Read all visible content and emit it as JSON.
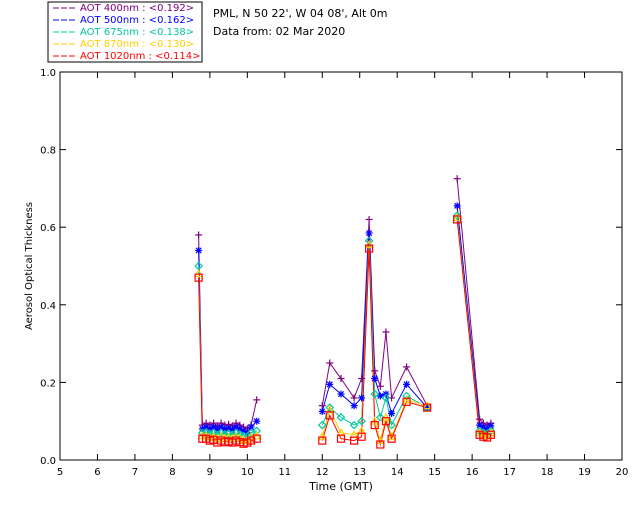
{
  "legend": {
    "entries": [
      {
        "label": "AOT  400nm : <0.192>",
        "color": "#800080"
      },
      {
        "label": "AOT  500nm : <0.162>",
        "color": "#0000ff"
      },
      {
        "label": "AOT  675nm : <0.138>",
        "color": "#00c8a0"
      },
      {
        "label": "AOT  870nm : <0.130>",
        "color": "#ffcc00"
      },
      {
        "label": "AOT 1020nm : <0.114>",
        "color": "#ff0000"
      }
    ]
  },
  "info": {
    "site": "PML, N 50 22', W 04 08', Alt 0m",
    "date": "Data from: 02 Mar 2020"
  },
  "chart_data": {
    "type": "scatter",
    "xlabel": "Time (GMT)",
    "ylabel": "Aerosol Optical Thickness",
    "xlim": [
      5,
      20
    ],
    "ylim": [
      0,
      1.0
    ],
    "xticks": [
      "5",
      "6",
      "7",
      "8",
      "9",
      "10",
      "11",
      "12",
      "13",
      "14",
      "15",
      "16",
      "17",
      "18",
      "19",
      "20"
    ],
    "yticks": [
      "0.0",
      "0.2",
      "0.4",
      "0.6",
      "0.8",
      "1.0"
    ],
    "grid": false,
    "legend_position": "top-left, above plot",
    "series": [
      {
        "name": "AOT  400nm : <0.192>",
        "marker": "plus",
        "color": "#800080",
        "points": [
          [
            8.7,
            0.58
          ],
          [
            8.8,
            0.09
          ],
          [
            8.9,
            0.095
          ],
          [
            9.0,
            0.09
          ],
          [
            9.1,
            0.095
          ],
          [
            9.2,
            0.088
          ],
          [
            9.3,
            0.095
          ],
          [
            9.4,
            0.09
          ],
          [
            9.5,
            0.092
          ],
          [
            9.6,
            0.088
          ],
          [
            9.7,
            0.095
          ],
          [
            9.8,
            0.09
          ],
          [
            9.9,
            0.085
          ],
          [
            10.0,
            0.08
          ],
          [
            10.1,
            0.09
          ],
          [
            10.25,
            0.155
          ],
          [
            12.0,
            0.14
          ],
          [
            12.2,
            0.25
          ],
          [
            12.5,
            0.21
          ],
          [
            12.85,
            0.16
          ],
          [
            13.05,
            0.21
          ],
          [
            13.25,
            0.62
          ],
          [
            13.4,
            0.23
          ],
          [
            13.55,
            0.19
          ],
          [
            13.7,
            0.33
          ],
          [
            13.85,
            0.16
          ],
          [
            14.25,
            0.24
          ],
          [
            14.8,
            0.14
          ],
          [
            15.6,
            0.725
          ],
          [
            16.2,
            0.105
          ],
          [
            16.3,
            0.095
          ],
          [
            16.4,
            0.09
          ],
          [
            16.5,
            0.095
          ]
        ]
      },
      {
        "name": "AOT  500nm : <0.162>",
        "marker": "asterisk",
        "color": "#0000ff",
        "points": [
          [
            8.7,
            0.54
          ],
          [
            8.8,
            0.08
          ],
          [
            8.9,
            0.085
          ],
          [
            9.0,
            0.08
          ],
          [
            9.1,
            0.085
          ],
          [
            9.2,
            0.078
          ],
          [
            9.3,
            0.085
          ],
          [
            9.4,
            0.08
          ],
          [
            9.5,
            0.082
          ],
          [
            9.6,
            0.078
          ],
          [
            9.7,
            0.085
          ],
          [
            9.8,
            0.08
          ],
          [
            9.9,
            0.075
          ],
          [
            10.0,
            0.07
          ],
          [
            10.1,
            0.085
          ],
          [
            10.25,
            0.1
          ],
          [
            12.0,
            0.125
          ],
          [
            12.2,
            0.195
          ],
          [
            12.5,
            0.17
          ],
          [
            12.85,
            0.14
          ],
          [
            13.05,
            0.16
          ],
          [
            13.25,
            0.585
          ],
          [
            13.4,
            0.21
          ],
          [
            13.55,
            0.165
          ],
          [
            13.7,
            0.17
          ],
          [
            13.85,
            0.12
          ],
          [
            14.25,
            0.195
          ],
          [
            14.8,
            0.135
          ],
          [
            15.6,
            0.655
          ],
          [
            16.2,
            0.09
          ],
          [
            16.3,
            0.085
          ],
          [
            16.4,
            0.08
          ],
          [
            16.5,
            0.088
          ]
        ]
      },
      {
        "name": "AOT  675nm : <0.138>",
        "marker": "diamond",
        "color": "#00c8a0",
        "points": [
          [
            8.7,
            0.5
          ],
          [
            8.8,
            0.07
          ],
          [
            8.9,
            0.072
          ],
          [
            9.0,
            0.068
          ],
          [
            9.1,
            0.07
          ],
          [
            9.2,
            0.065
          ],
          [
            9.3,
            0.07
          ],
          [
            9.4,
            0.066
          ],
          [
            9.5,
            0.068
          ],
          [
            9.6,
            0.065
          ],
          [
            9.7,
            0.07
          ],
          [
            9.8,
            0.066
          ],
          [
            9.9,
            0.062
          ],
          [
            10.0,
            0.06
          ],
          [
            10.1,
            0.07
          ],
          [
            10.25,
            0.075
          ],
          [
            12.0,
            0.09
          ],
          [
            12.2,
            0.135
          ],
          [
            12.5,
            0.11
          ],
          [
            12.85,
            0.09
          ],
          [
            13.05,
            0.1
          ],
          [
            13.25,
            0.565
          ],
          [
            13.4,
            0.17
          ],
          [
            13.55,
            0.11
          ],
          [
            13.7,
            0.16
          ],
          [
            13.85,
            0.09
          ],
          [
            14.25,
            0.165
          ],
          [
            14.8,
            0.135
          ],
          [
            15.6,
            0.63
          ],
          [
            16.2,
            0.075
          ],
          [
            16.3,
            0.07
          ],
          [
            16.4,
            0.068
          ],
          [
            16.5,
            0.075
          ]
        ]
      },
      {
        "name": "AOT  870nm : <0.130>",
        "marker": "triangle",
        "color": "#ffcc00",
        "points": [
          [
            8.7,
            0.48
          ],
          [
            8.8,
            0.062
          ],
          [
            8.9,
            0.062
          ],
          [
            9.0,
            0.058
          ],
          [
            9.1,
            0.06
          ],
          [
            9.2,
            0.055
          ],
          [
            9.3,
            0.06
          ],
          [
            9.4,
            0.056
          ],
          [
            9.5,
            0.058
          ],
          [
            9.6,
            0.055
          ],
          [
            9.7,
            0.06
          ],
          [
            9.8,
            0.056
          ],
          [
            9.9,
            0.052
          ],
          [
            10.0,
            0.05
          ],
          [
            10.1,
            0.06
          ],
          [
            10.25,
            0.062
          ],
          [
            12.0,
            0.06
          ],
          [
            12.2,
            0.13
          ],
          [
            12.5,
            0.07
          ],
          [
            12.85,
            0.065
          ],
          [
            13.05,
            0.075
          ],
          [
            13.25,
            0.555
          ],
          [
            13.4,
            0.1
          ],
          [
            13.55,
            0.05
          ],
          [
            13.7,
            0.11
          ],
          [
            13.85,
            0.06
          ],
          [
            14.25,
            0.155
          ],
          [
            14.8,
            0.14
          ],
          [
            15.6,
            0.625
          ],
          [
            16.2,
            0.07
          ],
          [
            16.3,
            0.065
          ],
          [
            16.4,
            0.062
          ],
          [
            16.5,
            0.07
          ]
        ]
      },
      {
        "name": "AOT 1020nm : <0.114>",
        "marker": "square",
        "color": "#ff0000",
        "points": [
          [
            8.7,
            0.47
          ],
          [
            8.8,
            0.055
          ],
          [
            8.9,
            0.055
          ],
          [
            9.0,
            0.05
          ],
          [
            9.1,
            0.052
          ],
          [
            9.2,
            0.045
          ],
          [
            9.3,
            0.05
          ],
          [
            9.4,
            0.046
          ],
          [
            9.5,
            0.048
          ],
          [
            9.6,
            0.045
          ],
          [
            9.7,
            0.05
          ],
          [
            9.8,
            0.046
          ],
          [
            9.9,
            0.042
          ],
          [
            10.0,
            0.045
          ],
          [
            10.1,
            0.05
          ],
          [
            10.25,
            0.055
          ],
          [
            12.0,
            0.05
          ],
          [
            12.2,
            0.115
          ],
          [
            12.5,
            0.055
          ],
          [
            12.85,
            0.05
          ],
          [
            13.05,
            0.06
          ],
          [
            13.25,
            0.545
          ],
          [
            13.4,
            0.09
          ],
          [
            13.55,
            0.04
          ],
          [
            13.7,
            0.1
          ],
          [
            13.85,
            0.055
          ],
          [
            14.25,
            0.15
          ],
          [
            14.8,
            0.135
          ],
          [
            15.6,
            0.62
          ],
          [
            16.2,
            0.065
          ],
          [
            16.3,
            0.06
          ],
          [
            16.4,
            0.058
          ],
          [
            16.5,
            0.065
          ]
        ]
      }
    ]
  }
}
